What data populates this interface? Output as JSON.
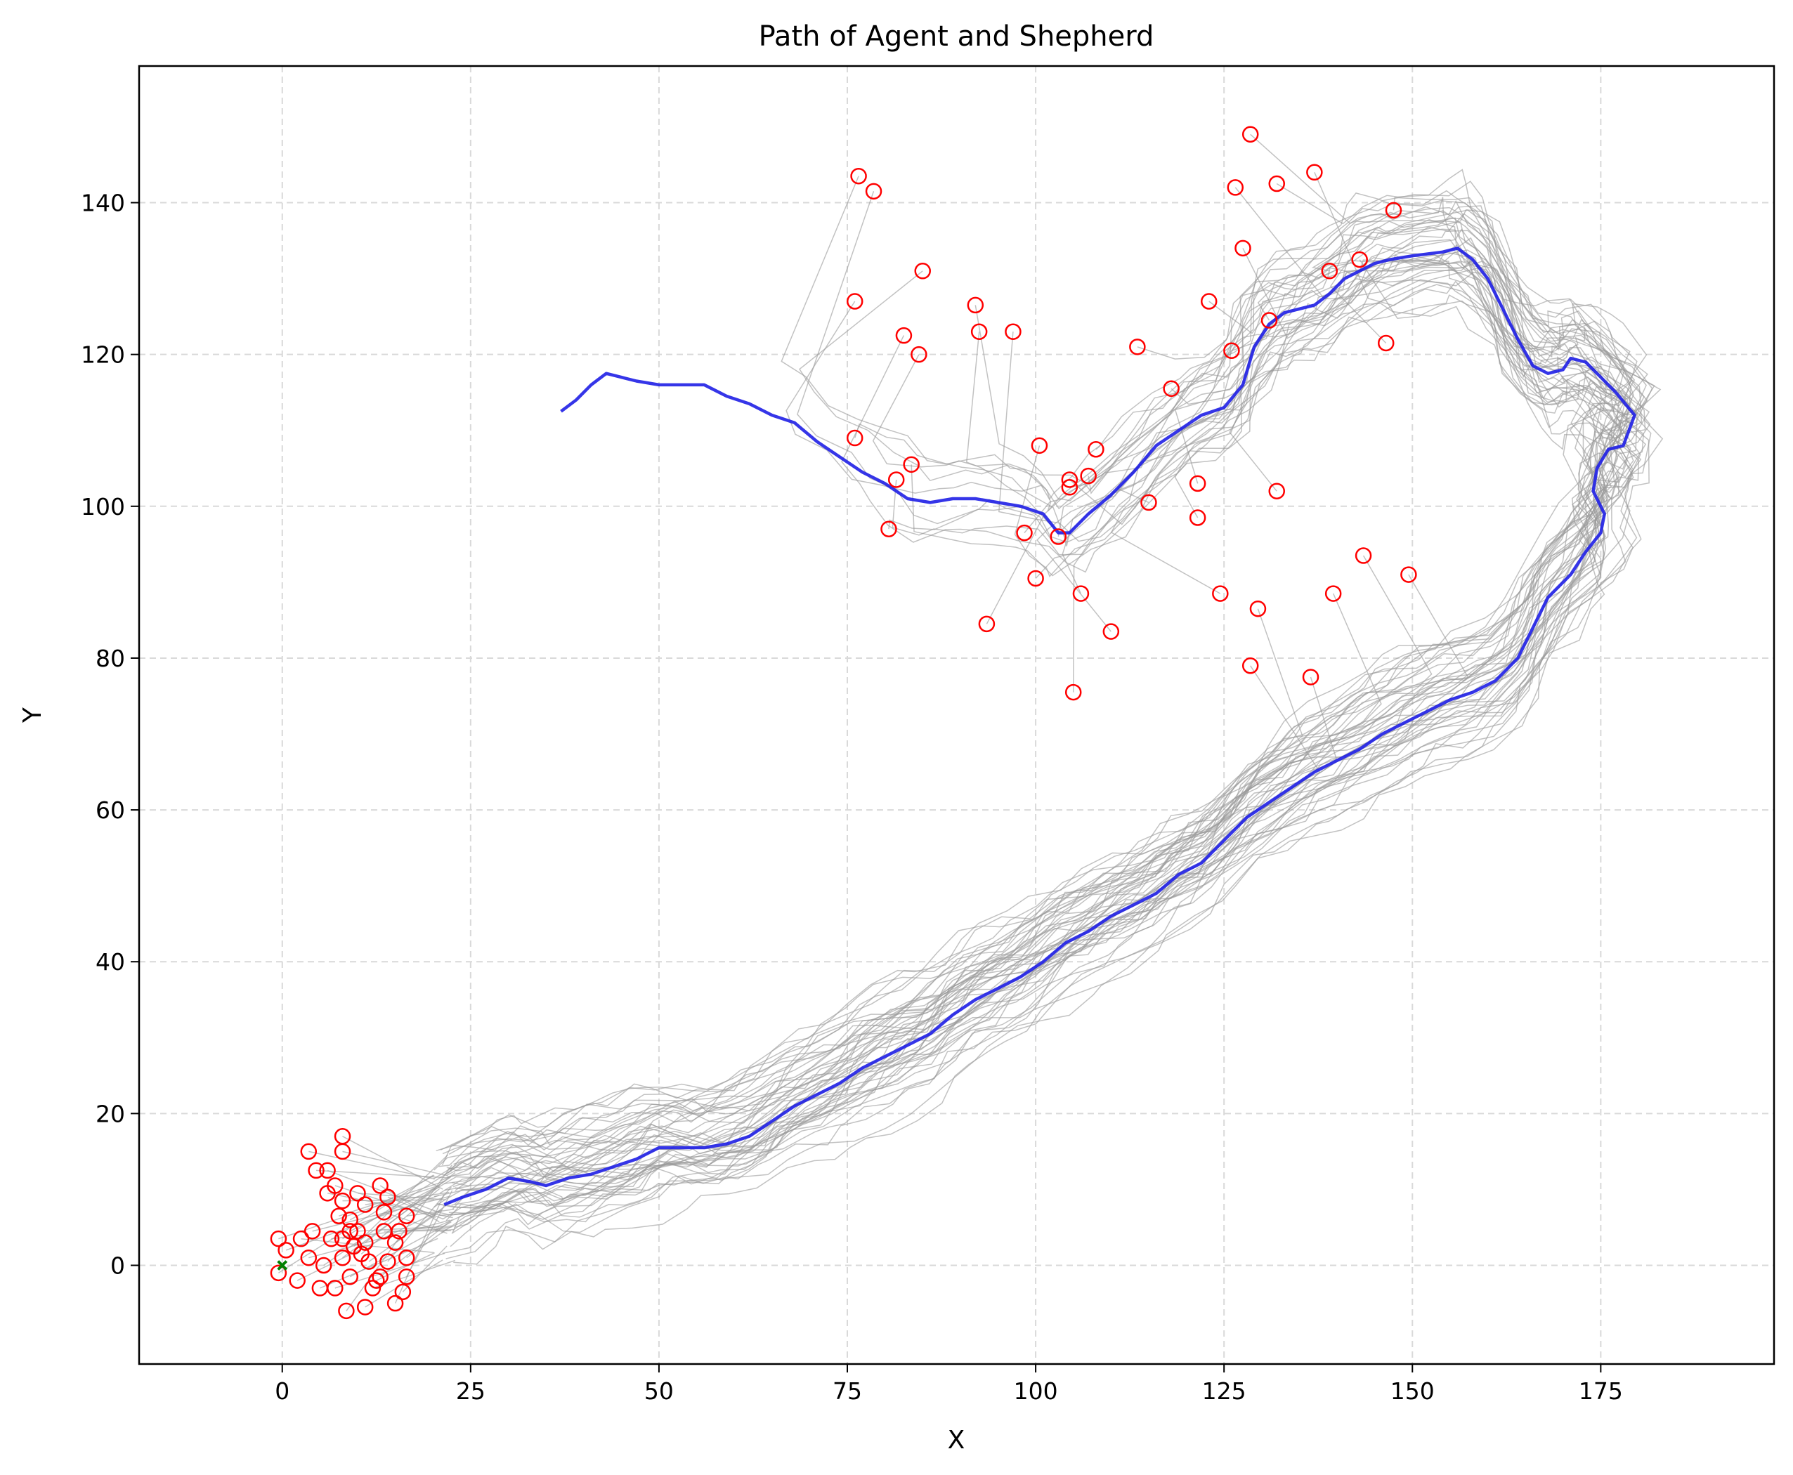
{
  "chart_data": {
    "type": "line",
    "title": "Path of Agent and Shepherd",
    "xlabel": "X",
    "ylabel": "Y",
    "xlim": [
      -19,
      198
    ],
    "ylim": [
      -13,
      158
    ],
    "xticks": [
      0,
      25,
      50,
      75,
      100,
      125,
      150,
      175
    ],
    "yticks": [
      0,
      20,
      40,
      60,
      80,
      100,
      120,
      140
    ],
    "grid": true,
    "colors": {
      "shepherd": "#1f1fe6",
      "sheep_paths": "#999999",
      "sheep_markers": "#ff0000",
      "goal": "#008000"
    },
    "shepherd_path": [
      [
        21.5,
        8
      ],
      [
        24,
        9
      ],
      [
        27,
        10
      ],
      [
        30,
        11.5
      ],
      [
        33,
        11
      ],
      [
        35,
        10.5
      ],
      [
        38,
        11.5
      ],
      [
        41,
        12
      ],
      [
        44,
        13
      ],
      [
        47,
        14
      ],
      [
        50,
        15.5
      ],
      [
        53,
        15.5
      ],
      [
        56,
        15.5
      ],
      [
        59,
        16
      ],
      [
        62,
        17
      ],
      [
        65,
        19
      ],
      [
        68,
        21
      ],
      [
        71,
        22.5
      ],
      [
        74,
        24
      ],
      [
        77,
        26
      ],
      [
        80,
        27.5
      ],
      [
        83,
        29
      ],
      [
        86,
        30.5
      ],
      [
        89,
        33
      ],
      [
        92,
        35
      ],
      [
        95,
        36.5
      ],
      [
        98,
        38
      ],
      [
        101,
        40
      ],
      [
        104,
        42.5
      ],
      [
        107,
        44
      ],
      [
        110,
        46
      ],
      [
        113,
        47.5
      ],
      [
        116,
        49
      ],
      [
        119,
        51.5
      ],
      [
        122,
        53
      ],
      [
        125,
        56
      ],
      [
        128,
        59
      ],
      [
        131,
        61
      ],
      [
        134,
        63
      ],
      [
        137,
        65
      ],
      [
        140,
        66.5
      ],
      [
        143,
        68
      ],
      [
        146,
        70
      ],
      [
        149,
        71.5
      ],
      [
        152,
        73
      ],
      [
        155,
        74.5
      ],
      [
        158,
        75.5
      ],
      [
        161,
        77
      ],
      [
        164,
        80
      ],
      [
        166,
        84
      ],
      [
        168,
        88
      ],
      [
        171,
        91
      ],
      [
        173,
        94
      ],
      [
        175,
        96.5
      ],
      [
        175.5,
        99
      ],
      [
        174,
        102
      ],
      [
        174.5,
        105
      ],
      [
        176,
        107.5
      ],
      [
        178,
        108
      ],
      [
        179.5,
        112
      ],
      [
        177,
        115
      ],
      [
        175,
        117
      ],
      [
        173,
        119
      ],
      [
        171,
        119.5
      ],
      [
        170,
        118
      ],
      [
        168,
        117.5
      ],
      [
        166,
        118.5
      ],
      [
        164,
        122
      ],
      [
        162,
        126
      ],
      [
        160,
        130
      ],
      [
        158,
        132.5
      ],
      [
        156,
        134
      ],
      [
        154,
        133.5
      ],
      [
        150,
        133
      ],
      [
        147,
        132.5
      ],
      [
        145,
        132
      ],
      [
        143,
        131
      ],
      [
        141,
        130
      ],
      [
        139,
        128
      ],
      [
        137,
        126.5
      ],
      [
        135,
        126
      ],
      [
        133,
        125.5
      ],
      [
        131,
        124
      ],
      [
        129,
        121
      ],
      [
        127.5,
        116
      ],
      [
        125,
        113
      ],
      [
        122,
        112
      ],
      [
        119,
        110
      ],
      [
        116,
        108
      ],
      [
        113,
        104.5
      ],
      [
        110,
        101.5
      ],
      [
        107,
        99
      ],
      [
        104.5,
        96.5
      ],
      [
        103,
        96.5
      ],
      [
        101,
        99
      ],
      [
        98,
        100
      ],
      [
        95,
        100.5
      ],
      [
        92,
        101
      ],
      [
        89,
        101
      ],
      [
        86,
        100.5
      ],
      [
        83,
        101
      ],
      [
        80,
        103
      ],
      [
        77,
        104.5
      ],
      [
        74,
        106.5
      ],
      [
        71,
        108.5
      ],
      [
        68,
        111
      ],
      [
        65,
        112
      ],
      [
        62,
        113.5
      ],
      [
        59,
        114.5
      ],
      [
        56,
        116
      ],
      [
        53,
        116
      ],
      [
        50,
        116
      ],
      [
        47,
        116.5
      ],
      [
        45,
        117
      ],
      [
        43,
        117.5
      ],
      [
        41,
        116
      ],
      [
        39,
        114
      ],
      [
        37,
        112.5
      ]
    ],
    "sheep_start_positions": [
      [
        -0.5,
        3.5
      ],
      [
        -0.5,
        -1
      ],
      [
        0.5,
        2
      ],
      [
        2,
        -2
      ],
      [
        2.5,
        3.5
      ],
      [
        3.5,
        15
      ],
      [
        3.5,
        1
      ],
      [
        4,
        4.5
      ],
      [
        4.5,
        12.5
      ],
      [
        5,
        -3
      ],
      [
        5.5,
        0
      ],
      [
        6,
        9.5
      ],
      [
        6,
        12.5
      ],
      [
        6.5,
        3.5
      ],
      [
        7,
        -3
      ],
      [
        7,
        10.5
      ],
      [
        7.5,
        6.5
      ],
      [
        8,
        1
      ],
      [
        8,
        3.5
      ],
      [
        8,
        8.5
      ],
      [
        8,
        15
      ],
      [
        8,
        17
      ],
      [
        9,
        4.5
      ],
      [
        9,
        -1.5
      ],
      [
        9,
        6
      ],
      [
        8.5,
        -6
      ],
      [
        9.5,
        2.5
      ],
      [
        10,
        9.5
      ],
      [
        10,
        4.5
      ],
      [
        10.5,
        1.5
      ],
      [
        11,
        -5.5
      ],
      [
        11,
        8
      ],
      [
        11,
        3
      ],
      [
        11.5,
        0.5
      ],
      [
        12,
        -3
      ],
      [
        12.5,
        -2
      ],
      [
        13,
        10.5
      ],
      [
        13,
        -1.5
      ],
      [
        13.5,
        7
      ],
      [
        13.5,
        4.5
      ],
      [
        14,
        9
      ],
      [
        14,
        0.5
      ],
      [
        15,
        -5
      ],
      [
        15,
        3
      ],
      [
        15.5,
        4.5
      ],
      [
        16,
        -3.5
      ],
      [
        16.5,
        1
      ],
      [
        16.5,
        -1.5
      ],
      [
        16.5,
        6.5
      ],
      [
        76.5,
        143.5
      ],
      [
        78.5,
        141.5
      ],
      [
        76,
        127
      ],
      [
        85,
        131
      ],
      [
        92,
        126.5
      ],
      [
        92.5,
        123
      ],
      [
        97,
        123
      ],
      [
        82.5,
        122.5
      ],
      [
        84.5,
        120
      ],
      [
        76,
        109
      ],
      [
        83.5,
        105.5
      ],
      [
        81.5,
        103.5
      ],
      [
        80.5,
        97
      ],
      [
        100.5,
        108
      ],
      [
        104.5,
        103.5
      ],
      [
        104.5,
        102.5
      ],
      [
        107,
        104
      ],
      [
        108,
        107.5
      ],
      [
        98.5,
        96.5
      ],
      [
        103,
        96
      ],
      [
        100,
        90.5
      ],
      [
        106,
        88.5
      ],
      [
        93.5,
        84.5
      ],
      [
        110,
        83.5
      ],
      [
        105,
        75.5
      ],
      [
        113.5,
        121
      ],
      [
        118,
        115.5
      ],
      [
        115,
        100.5
      ],
      [
        121.5,
        103
      ],
      [
        121.5,
        98.5
      ],
      [
        123,
        127
      ],
      [
        124.5,
        88.5
      ],
      [
        126,
        120.5
      ],
      [
        126.5,
        142
      ],
      [
        127.5,
        134
      ],
      [
        128.5,
        149
      ],
      [
        129.5,
        86.5
      ],
      [
        128.5,
        79
      ],
      [
        131,
        124.5
      ],
      [
        132,
        142.5
      ],
      [
        132,
        102
      ],
      [
        137,
        144
      ],
      [
        139,
        131
      ],
      [
        139.5,
        88.5
      ],
      [
        143,
        132.5
      ],
      [
        143.5,
        93.5
      ],
      [
        136.5,
        77.5
      ],
      [
        146.5,
        121.5
      ],
      [
        147.5,
        139
      ],
      [
        149.5,
        91
      ]
    ],
    "goal_point": [
      0,
      0
    ]
  }
}
